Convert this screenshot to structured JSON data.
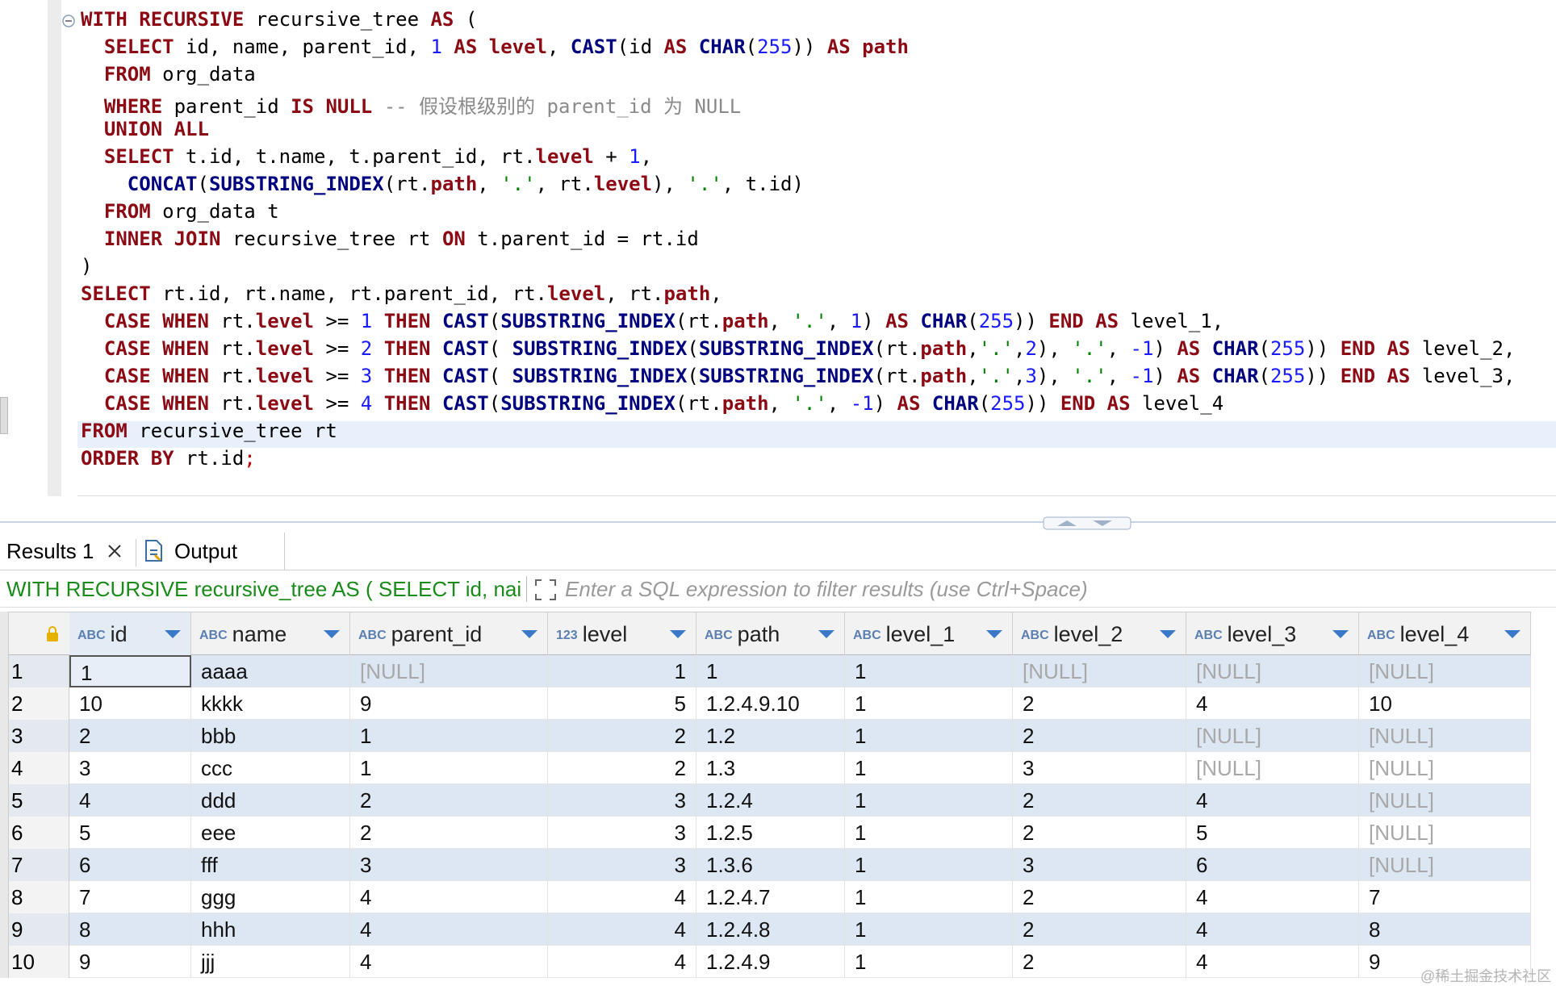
{
  "editor": {
    "lines": [
      [
        [
          "WITH RECURSIVE",
          "#8b0a14",
          true
        ],
        [
          " recursive_tree ",
          "#000"
        ],
        [
          "AS",
          "#8b0a14",
          true
        ],
        [
          " (",
          "#000"
        ]
      ],
      [
        [
          "  SELECT",
          "#8b0a14",
          true
        ],
        [
          " id, name, parent_id, ",
          "#000"
        ],
        [
          "1",
          "#1a1aff"
        ],
        [
          " ",
          "#000"
        ],
        [
          "AS level",
          "#8b0a14",
          true
        ],
        [
          ", ",
          "#000"
        ],
        [
          "CAST",
          "#00007f",
          true
        ],
        [
          "(id ",
          "#000"
        ],
        [
          "AS",
          "#8b0a14",
          true
        ],
        [
          " ",
          "#000"
        ],
        [
          "CHAR",
          "#00007f",
          true
        ],
        [
          "(",
          "#000"
        ],
        [
          "255",
          "#1a1aff"
        ],
        [
          ")) ",
          "#000"
        ],
        [
          "AS path",
          "#8b0a14",
          true
        ]
      ],
      [
        [
          "  FROM",
          "#8b0a14",
          true
        ],
        [
          " org_data",
          "#000"
        ]
      ],
      [
        [
          "  WHERE",
          "#8b0a14",
          true
        ],
        [
          " parent_id ",
          "#000"
        ],
        [
          "IS NULL",
          "#8b0a14",
          true
        ],
        [
          " -- 假设根级别的 parent_id 为 NULL",
          "#8a8a8a"
        ]
      ],
      [
        [
          "  UNION ALL",
          "#8b0a14",
          true
        ]
      ],
      [
        [
          "  SELECT",
          "#8b0a14",
          true
        ],
        [
          " t.id, t.name, t.parent_id, rt.",
          "#000"
        ],
        [
          "level",
          "#8b0a14",
          true
        ],
        [
          " + ",
          "#000"
        ],
        [
          "1",
          "#1a1aff"
        ],
        [
          ",",
          "#000"
        ]
      ],
      [
        [
          "    CONCAT",
          "#00007f",
          true
        ],
        [
          "(",
          "#000"
        ],
        [
          "SUBSTRING_INDEX",
          "#00007f",
          true
        ],
        [
          "(rt.",
          "#000"
        ],
        [
          "path",
          "#8b0a14",
          true
        ],
        [
          ", ",
          "#000"
        ],
        [
          "'.'",
          "#008000"
        ],
        [
          ", rt.",
          "#000"
        ],
        [
          "level",
          "#8b0a14",
          true
        ],
        [
          "), ",
          "#000"
        ],
        [
          "'.'",
          "#008000"
        ],
        [
          ", t.id)",
          "#000"
        ]
      ],
      [
        [
          "  FROM",
          "#8b0a14",
          true
        ],
        [
          " org_data t",
          "#000"
        ]
      ],
      [
        [
          "  INNER JOIN",
          "#8b0a14",
          true
        ],
        [
          " recursive_tree rt ",
          "#000"
        ],
        [
          "ON",
          "#8b0a14",
          true
        ],
        [
          " t.parent_id = rt.id",
          "#000"
        ]
      ],
      [
        [
          ")",
          "#000"
        ]
      ],
      [
        [
          "SELECT",
          "#8b0a14",
          true
        ],
        [
          " rt.id, rt.name, rt.parent_id, rt.",
          "#000"
        ],
        [
          "level",
          "#8b0a14",
          true
        ],
        [
          ", rt.",
          "#000"
        ],
        [
          "path",
          "#8b0a14",
          true
        ],
        [
          ",",
          "#000"
        ]
      ],
      [
        [
          "  CASE WHEN",
          "#8b0a14",
          true
        ],
        [
          " rt.",
          "#000"
        ],
        [
          "level",
          "#8b0a14",
          true
        ],
        [
          " >= ",
          "#000"
        ],
        [
          "1",
          "#1a1aff"
        ],
        [
          " ",
          "#000"
        ],
        [
          "THEN",
          "#8b0a14",
          true
        ],
        [
          " ",
          "#000"
        ],
        [
          "CAST",
          "#00007f",
          true
        ],
        [
          "(",
          "#000"
        ],
        [
          "SUBSTRING_INDEX",
          "#00007f",
          true
        ],
        [
          "(rt.",
          "#000"
        ],
        [
          "path",
          "#8b0a14",
          true
        ],
        [
          ", ",
          "#000"
        ],
        [
          "'.'",
          "#008000"
        ],
        [
          ", ",
          "#000"
        ],
        [
          "1",
          "#1a1aff"
        ],
        [
          ") ",
          "#000"
        ],
        [
          "AS",
          "#8b0a14",
          true
        ],
        [
          " ",
          "#000"
        ],
        [
          "CHAR",
          "#00007f",
          true
        ],
        [
          "(",
          "#000"
        ],
        [
          "255",
          "#1a1aff"
        ],
        [
          ")) ",
          "#000"
        ],
        [
          "END AS",
          "#8b0a14",
          true
        ],
        [
          " level_1,",
          "#000"
        ]
      ],
      [
        [
          "  CASE WHEN",
          "#8b0a14",
          true
        ],
        [
          " rt.",
          "#000"
        ],
        [
          "level",
          "#8b0a14",
          true
        ],
        [
          " >= ",
          "#000"
        ],
        [
          "2",
          "#1a1aff"
        ],
        [
          " ",
          "#000"
        ],
        [
          "THEN",
          "#8b0a14",
          true
        ],
        [
          " ",
          "#000"
        ],
        [
          "CAST",
          "#00007f",
          true
        ],
        [
          "( ",
          "#000"
        ],
        [
          "SUBSTRING_INDEX",
          "#00007f",
          true
        ],
        [
          "(",
          "#000"
        ],
        [
          "SUBSTRING_INDEX",
          "#00007f",
          true
        ],
        [
          "(rt.",
          "#000"
        ],
        [
          "path",
          "#8b0a14",
          true
        ],
        [
          ",",
          "#000"
        ],
        [
          "'.'",
          "#008000"
        ],
        [
          ",",
          "#000"
        ],
        [
          "2",
          "#1a1aff"
        ],
        [
          "), ",
          "#000"
        ],
        [
          "'.'",
          "#008000"
        ],
        [
          ", ",
          "#000"
        ],
        [
          "-1",
          "#1a1aff"
        ],
        [
          ") ",
          "#000"
        ],
        [
          "AS",
          "#8b0a14",
          true
        ],
        [
          " ",
          "#000"
        ],
        [
          "CHAR",
          "#00007f",
          true
        ],
        [
          "(",
          "#000"
        ],
        [
          "255",
          "#1a1aff"
        ],
        [
          ")) ",
          "#000"
        ],
        [
          "END AS",
          "#8b0a14",
          true
        ],
        [
          " level_2,",
          "#000"
        ]
      ],
      [
        [
          "  CASE WHEN",
          "#8b0a14",
          true
        ],
        [
          " rt.",
          "#000"
        ],
        [
          "level",
          "#8b0a14",
          true
        ],
        [
          " >= ",
          "#000"
        ],
        [
          "3",
          "#1a1aff"
        ],
        [
          " ",
          "#000"
        ],
        [
          "THEN",
          "#8b0a14",
          true
        ],
        [
          " ",
          "#000"
        ],
        [
          "CAST",
          "#00007f",
          true
        ],
        [
          "( ",
          "#000"
        ],
        [
          "SUBSTRING_INDEX",
          "#00007f",
          true
        ],
        [
          "(",
          "#000"
        ],
        [
          "SUBSTRING_INDEX",
          "#00007f",
          true
        ],
        [
          "(rt.",
          "#000"
        ],
        [
          "path",
          "#8b0a14",
          true
        ],
        [
          ",",
          "#000"
        ],
        [
          "'.'",
          "#008000"
        ],
        [
          ",",
          "#000"
        ],
        [
          "3",
          "#1a1aff"
        ],
        [
          "), ",
          "#000"
        ],
        [
          "'.'",
          "#008000"
        ],
        [
          ", ",
          "#000"
        ],
        [
          "-1",
          "#1a1aff"
        ],
        [
          ") ",
          "#000"
        ],
        [
          "AS",
          "#8b0a14",
          true
        ],
        [
          " ",
          "#000"
        ],
        [
          "CHAR",
          "#00007f",
          true
        ],
        [
          "(",
          "#000"
        ],
        [
          "255",
          "#1a1aff"
        ],
        [
          ")) ",
          "#000"
        ],
        [
          "END AS",
          "#8b0a14",
          true
        ],
        [
          " level_3,",
          "#000"
        ]
      ],
      [
        [
          "  CASE WHEN",
          "#8b0a14",
          true
        ],
        [
          " rt.",
          "#000"
        ],
        [
          "level",
          "#8b0a14",
          true
        ],
        [
          " >= ",
          "#000"
        ],
        [
          "4",
          "#1a1aff"
        ],
        [
          " ",
          "#000"
        ],
        [
          "THEN",
          "#8b0a14",
          true
        ],
        [
          " ",
          "#000"
        ],
        [
          "CAST",
          "#00007f",
          true
        ],
        [
          "(",
          "#000"
        ],
        [
          "SUBSTRING_INDEX",
          "#00007f",
          true
        ],
        [
          "(rt.",
          "#000"
        ],
        [
          "path",
          "#8b0a14",
          true
        ],
        [
          ", ",
          "#000"
        ],
        [
          "'.'",
          "#008000"
        ],
        [
          ", ",
          "#000"
        ],
        [
          "-1",
          "#1a1aff"
        ],
        [
          ") ",
          "#000"
        ],
        [
          "AS",
          "#8b0a14",
          true
        ],
        [
          " ",
          "#000"
        ],
        [
          "CHAR",
          "#00007f",
          true
        ],
        [
          "(",
          "#000"
        ],
        [
          "255",
          "#1a1aff"
        ],
        [
          ")) ",
          "#000"
        ],
        [
          "END AS",
          "#8b0a14",
          true
        ],
        [
          " level_4",
          "#000"
        ]
      ],
      [
        [
          "FROM",
          "#8b0a14",
          true
        ],
        [
          " recursive_tree rt",
          "#000"
        ]
      ],
      [
        [
          "ORDER BY",
          "#8b0a14",
          true
        ],
        [
          " rt.id",
          "#000"
        ],
        [
          ";",
          "#c00000"
        ]
      ]
    ]
  },
  "tabs": {
    "results": "Results 1",
    "output": "Output"
  },
  "filter": {
    "query": "WITH RECURSIVE recursive_tree AS ( SELECT id, nai",
    "placeholder": "Enter a SQL expression to filter results (use Ctrl+Space)"
  },
  "table": {
    "null_text": "[NULL]",
    "columns": [
      {
        "type": "ABC",
        "name": "id"
      },
      {
        "type": "ABC",
        "name": "name"
      },
      {
        "type": "ABC",
        "name": "parent_id"
      },
      {
        "type": "123",
        "name": "level",
        "align": "right"
      },
      {
        "type": "ABC",
        "name": "path"
      },
      {
        "type": "ABC",
        "name": "level_1"
      },
      {
        "type": "ABC",
        "name": "level_2"
      },
      {
        "type": "ABC",
        "name": "level_3"
      },
      {
        "type": "ABC",
        "name": "level_4"
      }
    ],
    "row_numbers": [
      "1",
      "2",
      "3",
      "4",
      "5",
      "6",
      "7",
      "8",
      "9",
      "10"
    ],
    "rows": [
      [
        "1",
        "aaaa",
        null,
        "1",
        "1",
        "1",
        null,
        null,
        null
      ],
      [
        "10",
        "kkkk",
        "9",
        "5",
        "1.2.4.9.10",
        "1",
        "2",
        "4",
        "10"
      ],
      [
        "2",
        "bbb",
        "1",
        "2",
        "1.2",
        "1",
        "2",
        null,
        null
      ],
      [
        "3",
        "ccc",
        "1",
        "2",
        "1.3",
        "1",
        "3",
        null,
        null
      ],
      [
        "4",
        "ddd",
        "2",
        "3",
        "1.2.4",
        "1",
        "2",
        "4",
        null
      ],
      [
        "5",
        "eee",
        "2",
        "3",
        "1.2.5",
        "1",
        "2",
        "5",
        null
      ],
      [
        "6",
        "fff",
        "3",
        "3",
        "1.3.6",
        "1",
        "3",
        "6",
        null
      ],
      [
        "7",
        "ggg",
        "4",
        "4",
        "1.2.4.7",
        "1",
        "2",
        "4",
        "7"
      ],
      [
        "8",
        "hhh",
        "4",
        "4",
        "1.2.4.8",
        "1",
        "2",
        "4",
        "8"
      ],
      [
        "9",
        "jjj",
        "4",
        "4",
        "1.2.4.9",
        "1",
        "2",
        "4",
        "9"
      ]
    ]
  },
  "watermark": "@稀土掘金技术社区"
}
